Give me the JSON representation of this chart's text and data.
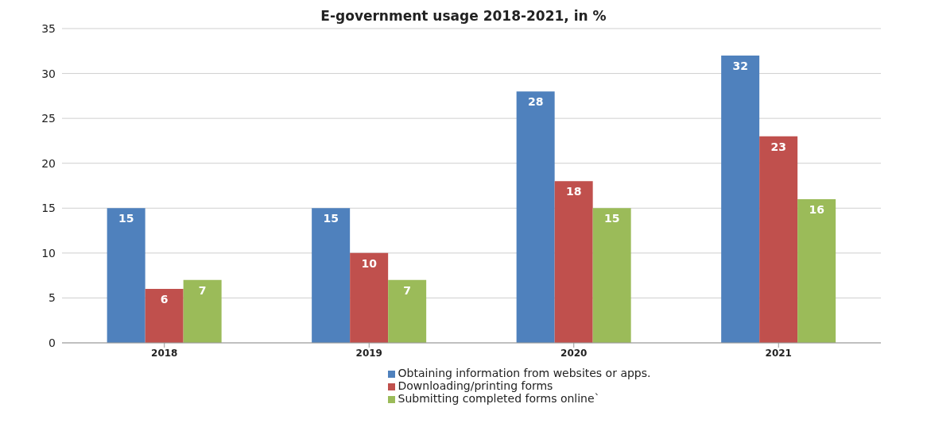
{
  "chart_data": {
    "type": "bar",
    "title": "E-government usage 2018-2021, in %",
    "categories": [
      "2018",
      "2019",
      "2020",
      "2021"
    ],
    "series": [
      {
        "name": "Obtaining information from websites or apps.",
        "color": "#4f81bd",
        "values": [
          15,
          15,
          28,
          32
        ]
      },
      {
        "name": "Downloading/printing forms",
        "color": "#c0504d",
        "values": [
          6,
          10,
          18,
          23
        ]
      },
      {
        "name": "Submitting completed forms online`",
        "color": "#9bbb59",
        "values": [
          7,
          7,
          15,
          16
        ]
      }
    ],
    "ylim": [
      0,
      35
    ],
    "yticks": [
      0,
      5,
      10,
      15,
      20,
      25,
      30,
      35
    ],
    "grid": "y",
    "legend": "bottom",
    "data_labels": true
  }
}
